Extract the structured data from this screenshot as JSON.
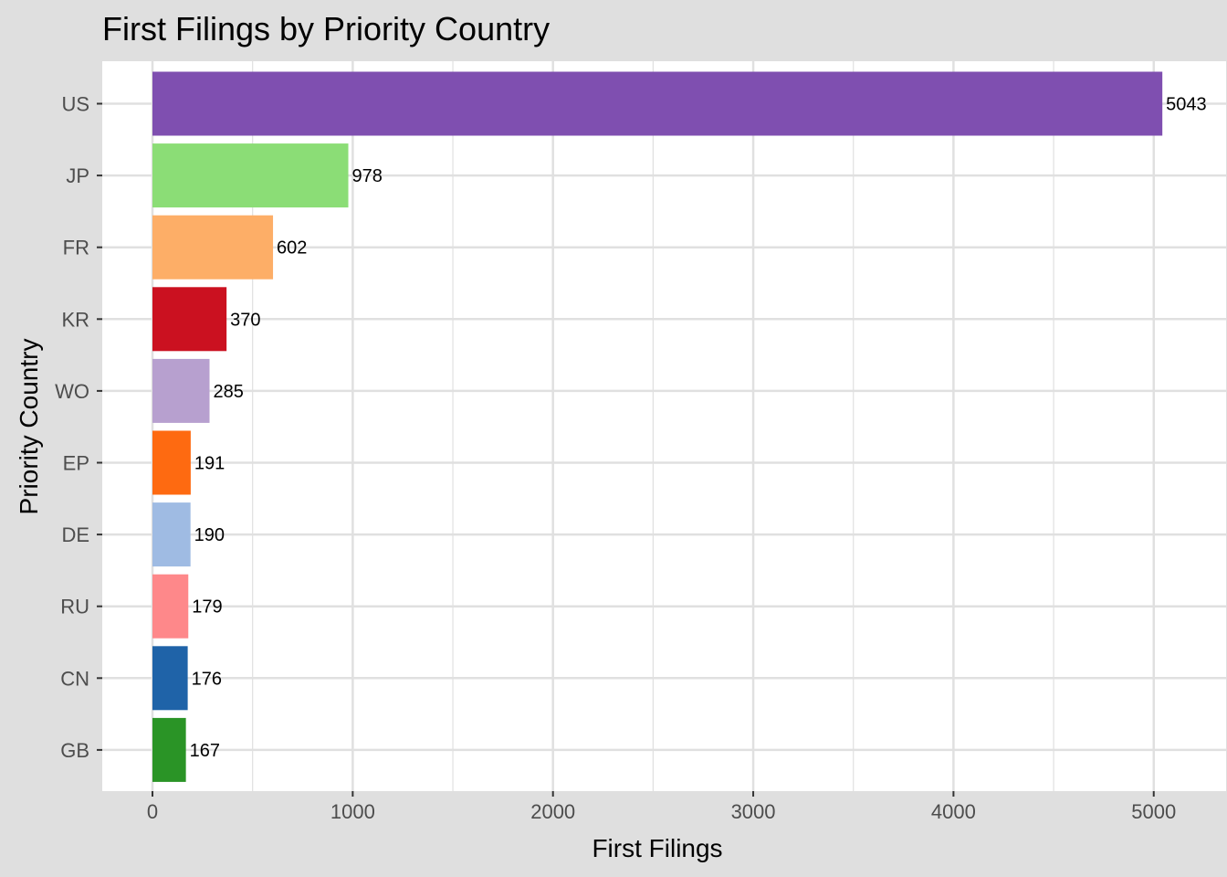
{
  "chart_data": {
    "type": "bar",
    "orientation": "horizontal",
    "title": "First Filings by Priority Country",
    "xlabel": "First Filings",
    "ylabel": "Priority Country",
    "categories": [
      "US",
      "JP",
      "FR",
      "KR",
      "WO",
      "EP",
      "DE",
      "RU",
      "CN",
      "GB"
    ],
    "values": [
      5043,
      978,
      602,
      370,
      285,
      191,
      190,
      179,
      176,
      167
    ],
    "colors": [
      "#7f4fb0",
      "#8bdd76",
      "#fdae67",
      "#cb1120",
      "#b7a0cf",
      "#fe6a11",
      "#9fbbe3",
      "#fe888a",
      "#1f63a8",
      "#2a9426"
    ],
    "xlim": [
      -240,
      5300
    ],
    "xticks": [
      0,
      1000,
      2000,
      3000,
      4000,
      5000
    ],
    "xtick_labels": [
      "0",
      "1000",
      "2000",
      "3000",
      "4000",
      "5000"
    ],
    "data_labels": [
      "5043",
      "978",
      "602",
      "370",
      "285",
      "191",
      "190",
      "179",
      "176",
      "167"
    ],
    "grid": true,
    "legend": "none",
    "background": "#dfdfdf",
    "panel_background": "#ffffff",
    "gridline_color": "#e0e0e0"
  }
}
